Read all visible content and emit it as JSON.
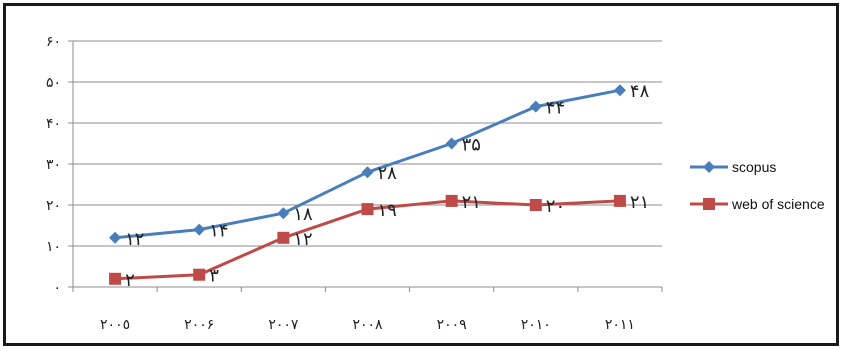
{
  "chart_data": {
    "type": "line",
    "categories": [
      "٢٠٠٥",
      "٢٠٠۶",
      "٢٠٠٧",
      "٢٠٠٨",
      "٢٠٠٩",
      "٢٠١٠",
      "٢٠١١"
    ],
    "ylim": [
      0,
      60
    ],
    "yticks": [
      0,
      10,
      20,
      30,
      40,
      50,
      60
    ],
    "ytick_labels": [
      "٠",
      "١٠",
      "٢٠",
      "٣٠",
      "۴٠",
      "۵٠",
      "۶٠"
    ],
    "grid": true,
    "legend_position": "right",
    "series": [
      {
        "name": "scopus",
        "color": "#4a7ebb",
        "marker": "diamond",
        "values": [
          12,
          14,
          18,
          28,
          35,
          44,
          48
        ],
        "labels": [
          "١٢",
          "١۴",
          "١٨",
          "٢٨",
          "٣۵",
          "۴۴",
          "۴٨"
        ]
      },
      {
        "name": "web of science",
        "color": "#be4b48",
        "marker": "square",
        "values": [
          2,
          3,
          12,
          19,
          21,
          20,
          21
        ],
        "labels": [
          "٢",
          "٣",
          "١٢",
          "١٩",
          "٢١",
          "٢٠",
          "٢١"
        ]
      }
    ]
  }
}
